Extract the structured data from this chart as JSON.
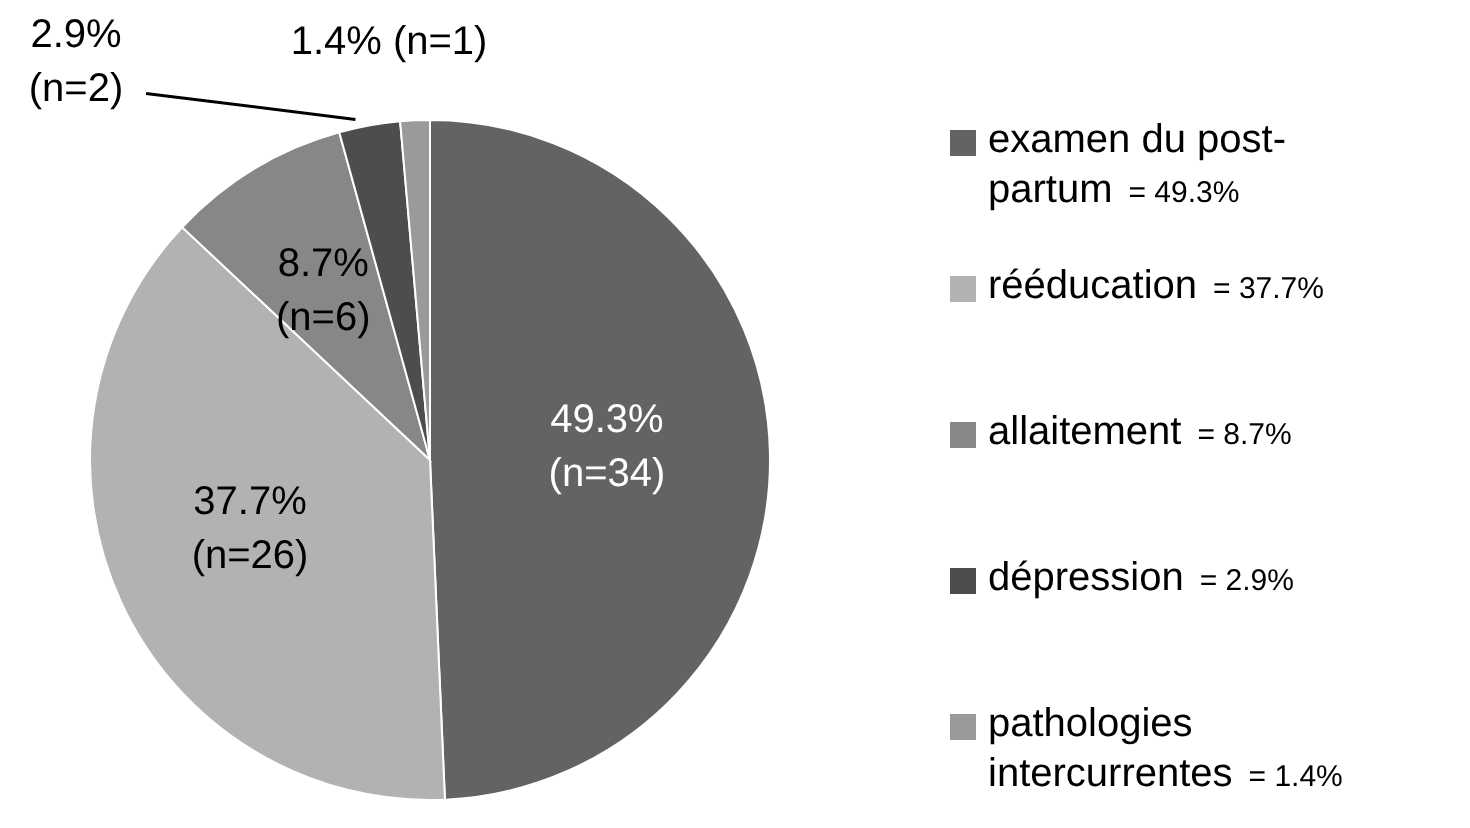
{
  "chart_data": {
    "type": "pie",
    "categories": [
      "examen du post-partum",
      "rééducation",
      "allaitement",
      "dépression",
      "pathologies intercurrentes"
    ],
    "values": [
      49.3,
      37.7,
      8.7,
      2.9,
      1.4
    ],
    "colors": [
      "#636363",
      "#b2b2b2",
      "#878787",
      "#4d4d4d",
      "#9a9a9a"
    ],
    "value_labels": [
      "49.3%\n(n=34)",
      "37.7%\n(n=26)",
      "8.7%\n(n=6)",
      "2.9%\n(n=2)",
      "1.4% (n=1)"
    ],
    "annotations": [
      "= 49.3%",
      "= 37.7%",
      "= 8.7%",
      "= 2.9%",
      "= 1.4%"
    ],
    "legend": "right"
  }
}
